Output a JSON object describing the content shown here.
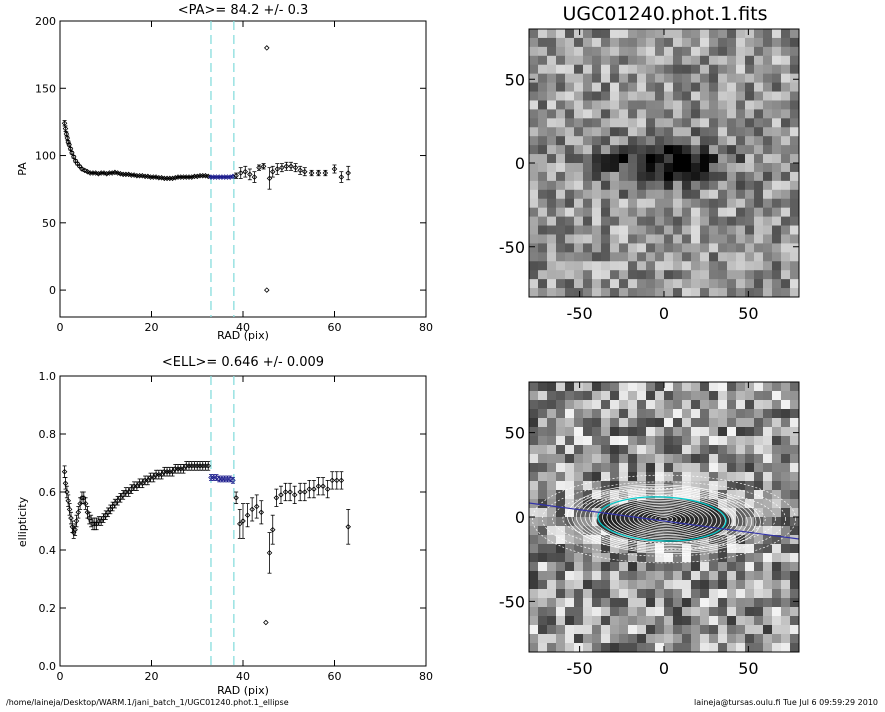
{
  "chart_data": [
    {
      "type": "scatter",
      "title": "<PA>=  84.2 +/-   0.3",
      "xlabel": "RAD (pix)",
      "ylabel": "PA",
      "xlim": [
        0,
        80
      ],
      "ylim": [
        -20,
        200
      ],
      "xticks": [
        "0",
        "20",
        "40",
        "60",
        "80"
      ],
      "yticks": [
        "0",
        "50",
        "100",
        "150",
        "200"
      ],
      "xtick_values": [
        0,
        20,
        40,
        60,
        80
      ],
      "ytick_values": [
        0,
        50,
        100,
        150,
        200
      ],
      "vlines": [
        33,
        38
      ],
      "highlight_range": [
        33,
        38
      ],
      "points": [
        [
          1.0,
          124,
          2
        ],
        [
          1.2,
          120,
          2
        ],
        [
          1.4,
          116,
          1.5
        ],
        [
          1.6,
          113,
          1.5
        ],
        [
          1.8,
          110,
          1
        ],
        [
          2.0,
          108,
          1
        ],
        [
          2.3,
          105,
          1
        ],
        [
          2.6,
          102,
          1
        ],
        [
          3.0,
          99,
          1
        ],
        [
          3.4,
          96,
          1
        ],
        [
          3.8,
          94,
          1
        ],
        [
          4.3,
          92,
          0.8
        ],
        [
          4.8,
          90,
          0.8
        ],
        [
          5.4,
          89,
          0.8
        ],
        [
          6.0,
          88,
          0.5
        ],
        [
          6.6,
          87,
          0.5
        ],
        [
          7.2,
          87,
          0.5
        ],
        [
          7.8,
          87,
          0.5
        ],
        [
          8.4,
          86.5,
          0.5
        ],
        [
          9.0,
          87,
          0.5
        ],
        [
          9.6,
          87,
          0.5
        ],
        [
          10.2,
          86.5,
          0.5
        ],
        [
          10.8,
          87,
          0.5
        ],
        [
          11.4,
          87,
          0.5
        ],
        [
          12.0,
          87.5,
          0.5
        ],
        [
          12.6,
          87,
          0.5
        ],
        [
          13.2,
          86.5,
          0.5
        ],
        [
          13.8,
          86,
          0.5
        ],
        [
          14.4,
          86,
          0.5
        ],
        [
          15.0,
          86,
          0.5
        ],
        [
          15.6,
          85.5,
          0.5
        ],
        [
          16.2,
          85.5,
          0.5
        ],
        [
          16.8,
          85,
          0.5
        ],
        [
          17.4,
          85,
          0.5
        ],
        [
          18.0,
          85,
          0.5
        ],
        [
          18.6,
          84.5,
          0.5
        ],
        [
          19.2,
          84.5,
          0.5
        ],
        [
          19.8,
          84,
          0.5
        ],
        [
          20.4,
          84,
          0.5
        ],
        [
          21.0,
          84,
          0.5
        ],
        [
          21.6,
          83.5,
          0.5
        ],
        [
          22.2,
          83.5,
          0.5
        ],
        [
          22.8,
          83,
          0.5
        ],
        [
          23.4,
          83,
          0.5
        ],
        [
          24.0,
          83,
          0.5
        ],
        [
          24.6,
          83,
          0.5
        ],
        [
          25.2,
          83.5,
          0.5
        ],
        [
          25.8,
          84,
          0.5
        ],
        [
          26.4,
          84,
          0.5
        ],
        [
          27.0,
          84,
          0.5
        ],
        [
          27.6,
          84,
          0.5
        ],
        [
          28.2,
          84,
          0.5
        ],
        [
          28.8,
          84,
          0.5
        ],
        [
          29.4,
          84.5,
          0.5
        ],
        [
          30.0,
          84.5,
          0.5
        ],
        [
          30.6,
          85,
          0.5
        ],
        [
          31.2,
          85,
          0.5
        ],
        [
          31.8,
          85,
          0.5
        ],
        [
          32.4,
          84.5,
          0.5
        ],
        [
          33.0,
          84,
          0.6
        ],
        [
          33.6,
          84,
          0.6
        ],
        [
          34.2,
          84,
          0.6
        ],
        [
          34.8,
          84,
          0.6
        ],
        [
          35.4,
          84,
          0.6
        ],
        [
          36.0,
          84,
          0.6
        ],
        [
          36.6,
          84,
          0.6
        ],
        [
          37.2,
          84,
          0.6
        ],
        [
          37.8,
          84.5,
          0.6
        ],
        [
          38.5,
          85,
          2
        ],
        [
          39.5,
          87,
          4
        ],
        [
          40.5,
          88,
          4
        ],
        [
          41.5,
          86,
          4
        ],
        [
          42.5,
          84,
          4
        ],
        [
          43.5,
          91,
          2
        ],
        [
          44.5,
          92,
          2
        ],
        [
          45.2,
          180,
          0
        ],
        [
          45.2,
          0,
          0
        ],
        [
          45.8,
          83,
          8
        ],
        [
          46.5,
          88,
          4
        ],
        [
          47.5,
          90,
          4
        ],
        [
          48.5,
          91,
          3
        ],
        [
          49.5,
          92,
          3
        ],
        [
          50.5,
          92,
          3
        ],
        [
          51.5,
          91,
          3
        ],
        [
          52.5,
          89,
          3
        ],
        [
          53.5,
          88,
          3
        ],
        [
          55.0,
          87,
          2
        ],
        [
          56.5,
          87,
          2
        ],
        [
          58.0,
          87,
          2
        ],
        [
          60.0,
          90,
          3
        ],
        [
          61.5,
          84,
          4
        ],
        [
          63.0,
          87,
          5
        ]
      ]
    },
    {
      "type": "scatter",
      "title": "<ELL>= 0.646 +/-  0.009",
      "xlabel": "RAD (pix)",
      "ylabel": "ellipticity",
      "xlim": [
        0,
        80
      ],
      "ylim": [
        0.0,
        1.0
      ],
      "xticks": [
        "0",
        "20",
        "40",
        "60",
        "80"
      ],
      "yticks": [
        "0.0",
        "0.2",
        "0.4",
        "0.6",
        "0.8",
        "1.0"
      ],
      "xtick_values": [
        0,
        20,
        40,
        60,
        80
      ],
      "ytick_values": [
        0.0,
        0.2,
        0.4,
        0.6,
        0.8,
        1.0
      ],
      "vlines": [
        33,
        38
      ],
      "highlight_range": [
        33,
        38
      ],
      "points": [
        [
          1.0,
          0.67,
          0.02
        ],
        [
          1.2,
          0.63,
          0.02
        ],
        [
          1.5,
          0.6,
          0.02
        ],
        [
          1.8,
          0.57,
          0.02
        ],
        [
          2.1,
          0.54,
          0.02
        ],
        [
          2.4,
          0.51,
          0.02
        ],
        [
          2.7,
          0.48,
          0.02
        ],
        [
          3.0,
          0.46,
          0.02
        ],
        [
          3.3,
          0.47,
          0.02
        ],
        [
          3.6,
          0.5,
          0.02
        ],
        [
          4.0,
          0.53,
          0.02
        ],
        [
          4.4,
          0.56,
          0.02
        ],
        [
          4.8,
          0.58,
          0.02
        ],
        [
          5.2,
          0.58,
          0.02
        ],
        [
          5.6,
          0.56,
          0.02
        ],
        [
          6.0,
          0.53,
          0.02
        ],
        [
          6.4,
          0.51,
          0.02
        ],
        [
          6.8,
          0.5,
          0.02
        ],
        [
          7.2,
          0.49,
          0.02
        ],
        [
          7.6,
          0.49,
          0.02
        ],
        [
          8.0,
          0.49,
          0.02
        ],
        [
          8.5,
          0.5,
          0.015
        ],
        [
          9.0,
          0.5,
          0.015
        ],
        [
          9.5,
          0.51,
          0.015
        ],
        [
          10.0,
          0.52,
          0.015
        ],
        [
          10.5,
          0.53,
          0.015
        ],
        [
          11.0,
          0.54,
          0.015
        ],
        [
          11.5,
          0.55,
          0.015
        ],
        [
          12.0,
          0.56,
          0.015
        ],
        [
          12.6,
          0.57,
          0.015
        ],
        [
          13.2,
          0.58,
          0.015
        ],
        [
          13.8,
          0.59,
          0.015
        ],
        [
          14.4,
          0.6,
          0.015
        ],
        [
          15.0,
          0.6,
          0.015
        ],
        [
          15.6,
          0.61,
          0.015
        ],
        [
          16.2,
          0.62,
          0.015
        ],
        [
          16.8,
          0.62,
          0.015
        ],
        [
          17.4,
          0.63,
          0.015
        ],
        [
          18.0,
          0.63,
          0.015
        ],
        [
          18.6,
          0.64,
          0.015
        ],
        [
          19.2,
          0.64,
          0.015
        ],
        [
          19.8,
          0.65,
          0.015
        ],
        [
          20.4,
          0.65,
          0.015
        ],
        [
          21.0,
          0.66,
          0.015
        ],
        [
          21.6,
          0.66,
          0.015
        ],
        [
          22.2,
          0.66,
          0.015
        ],
        [
          22.8,
          0.67,
          0.015
        ],
        [
          23.4,
          0.67,
          0.015
        ],
        [
          24.0,
          0.67,
          0.015
        ],
        [
          24.6,
          0.67,
          0.015
        ],
        [
          25.2,
          0.68,
          0.015
        ],
        [
          25.8,
          0.68,
          0.015
        ],
        [
          26.4,
          0.68,
          0.015
        ],
        [
          27.0,
          0.68,
          0.015
        ],
        [
          27.6,
          0.69,
          0.015
        ],
        [
          28.2,
          0.69,
          0.015
        ],
        [
          28.8,
          0.69,
          0.015
        ],
        [
          29.4,
          0.69,
          0.015
        ],
        [
          30.0,
          0.69,
          0.015
        ],
        [
          30.6,
          0.69,
          0.015
        ],
        [
          31.2,
          0.69,
          0.015
        ],
        [
          31.8,
          0.69,
          0.015
        ],
        [
          32.4,
          0.69,
          0.015
        ],
        [
          33.0,
          0.65,
          0.01
        ],
        [
          33.6,
          0.65,
          0.01
        ],
        [
          34.2,
          0.65,
          0.01
        ],
        [
          34.8,
          0.645,
          0.01
        ],
        [
          35.4,
          0.645,
          0.01
        ],
        [
          36.0,
          0.645,
          0.01
        ],
        [
          36.6,
          0.645,
          0.01
        ],
        [
          37.2,
          0.645,
          0.01
        ],
        [
          37.8,
          0.64,
          0.01
        ],
        [
          38.5,
          0.58,
          0.02
        ],
        [
          39.3,
          0.49,
          0.05
        ],
        [
          40.0,
          0.5,
          0.06
        ],
        [
          41.0,
          0.52,
          0.04
        ],
        [
          42.0,
          0.54,
          0.04
        ],
        [
          43.0,
          0.55,
          0.04
        ],
        [
          44.0,
          0.53,
          0.04
        ],
        [
          45.0,
          0.15,
          0
        ],
        [
          45.8,
          0.39,
          0.07
        ],
        [
          46.5,
          0.47,
          0.05
        ],
        [
          47.3,
          0.58,
          0.03
        ],
        [
          48.3,
          0.59,
          0.03
        ],
        [
          49.3,
          0.6,
          0.03
        ],
        [
          50.3,
          0.6,
          0.03
        ],
        [
          51.3,
          0.59,
          0.03
        ],
        [
          52.5,
          0.6,
          0.03
        ],
        [
          53.5,
          0.6,
          0.03
        ],
        [
          54.5,
          0.61,
          0.03
        ],
        [
          55.5,
          0.61,
          0.03
        ],
        [
          56.5,
          0.62,
          0.03
        ],
        [
          57.5,
          0.62,
          0.03
        ],
        [
          58.5,
          0.61,
          0.03
        ],
        [
          59.5,
          0.64,
          0.03
        ],
        [
          60.5,
          0.64,
          0.03
        ],
        [
          61.5,
          0.64,
          0.03
        ],
        [
          63.0,
          0.48,
          0.06
        ]
      ]
    },
    {
      "type": "heatmap",
      "title": "UGC01240.phot.1.fits",
      "xlim": [
        -80,
        80
      ],
      "ylim": [
        -80,
        80
      ],
      "xticks": [
        "-50",
        "0",
        "50"
      ],
      "yticks": [
        "-50",
        "0",
        "50"
      ],
      "xtick_values": [
        -50,
        0,
        50
      ],
      "ytick_values": [
        -50,
        0,
        50
      ],
      "galaxy": {
        "center": [
          0,
          0
        ],
        "pa": 84.2,
        "ell": 0.646
      }
    },
    {
      "type": "heatmap",
      "title": "",
      "xlim": [
        -80,
        80
      ],
      "ylim": [
        -80,
        80
      ],
      "xticks": [
        "-50",
        "0",
        "50"
      ],
      "yticks": [
        "-50",
        "0",
        "50"
      ],
      "xtick_values": [
        -50,
        0,
        50
      ],
      "ytick_values": [
        -50,
        0,
        50
      ],
      "overlays": [
        "isophote ellipses",
        "major-axis line"
      ],
      "colors": {
        "isophotes": "#ffffff",
        "outer_ellipse": "#00cccc",
        "axis_line": "#3333aa"
      }
    }
  ],
  "footer": {
    "left": "/home/laineja/Desktop/WARM.1/jani_batch_1/UGC01240.phot.1_ellipse",
    "right": "laineja@tursas.oulu.fi  Tue Jul  6 09:59:29 2010"
  },
  "colors": {
    "cyan_dash": "#88dddd",
    "highlight_points": "#1a1a8c"
  }
}
